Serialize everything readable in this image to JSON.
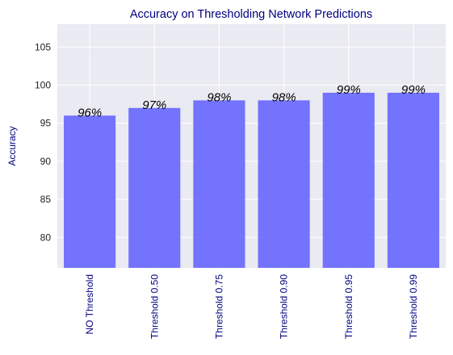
{
  "chart_data": {
    "type": "bar",
    "title": "Accuracy on Thresholding Network Predictions",
    "xlabel": "",
    "ylabel": "Accuracy",
    "categories": [
      "NO Threshold",
      "Threshold 0.50",
      "Threshold 0.75",
      "Threshold 0.90",
      "Threshold 0.95",
      "Threshold 0.99"
    ],
    "values": [
      96,
      97,
      98,
      98,
      99,
      99
    ],
    "data_labels": [
      "96%",
      "97%",
      "98%",
      "98%",
      "99%",
      "99%"
    ],
    "ylim": [
      76,
      108
    ],
    "yticks": [
      80,
      85,
      90,
      95,
      100,
      105
    ],
    "grid": true,
    "legend": "none",
    "colors": {
      "bar": "#6666ff",
      "plot_background": "#eaeaf2",
      "grid": "#ffffff",
      "title": "#00007f",
      "axis_label": "#00007f",
      "category_label": "#00007f"
    }
  }
}
